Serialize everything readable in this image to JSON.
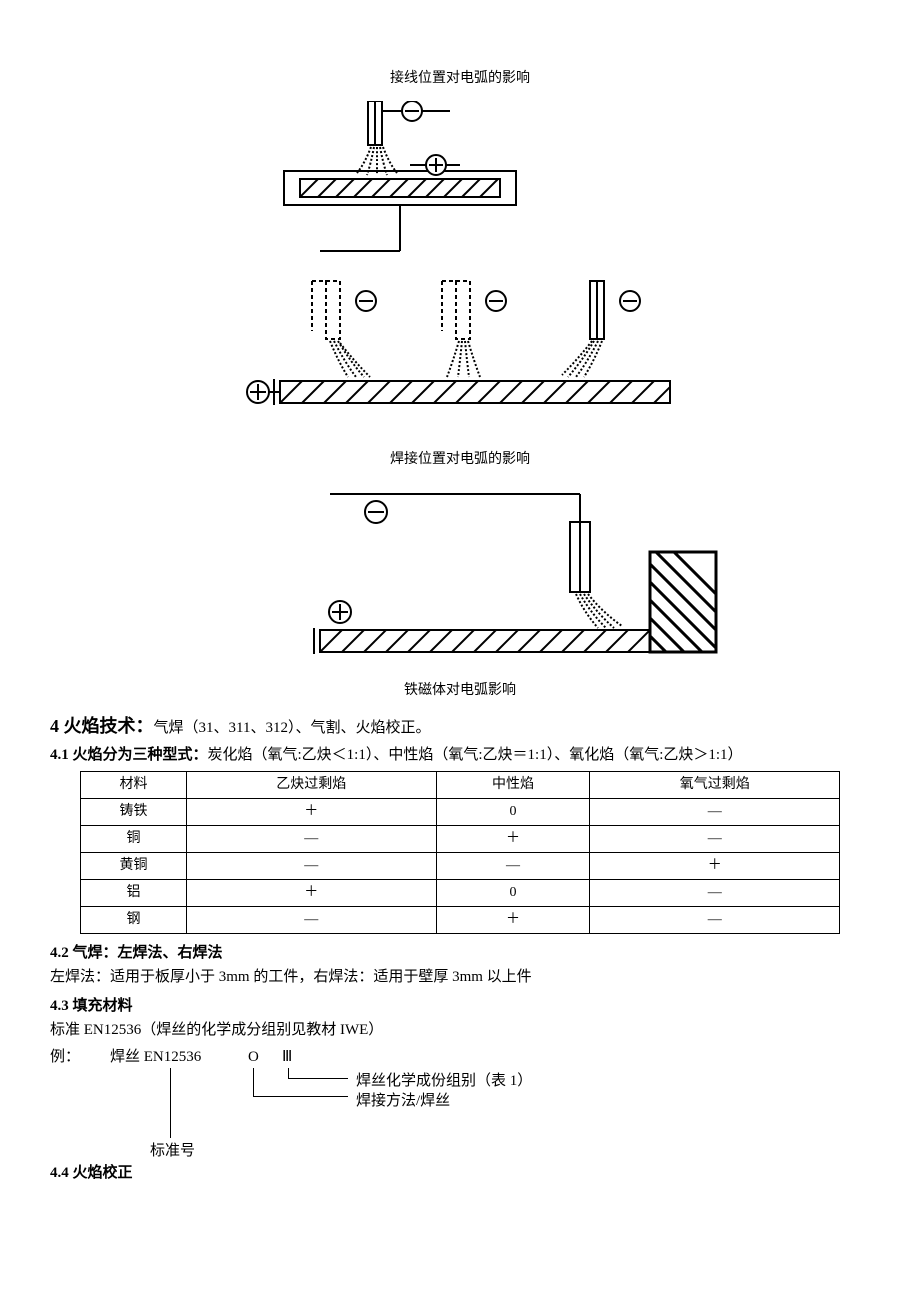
{
  "captions": {
    "c1": "接线位置对电弧的影响",
    "c2": "焊接位置对电弧的影响",
    "c3": "铁磁体对电弧影响"
  },
  "section4": {
    "title_prefix": "4 火焰技术：",
    "title_rest": "气焊（31、311、312）、气割、火焰校正。"
  },
  "s41": {
    "heading": "4.1  火焰分为三种型式：",
    "desc": "炭化焰（氧气:乙炔＜1:1）、中性焰（氧气:乙炔＝1:1）、氧化焰（氧气:乙炔＞1:1）",
    "table": {
      "headers": [
        "材料",
        "乙炔过剩焰",
        "中性焰",
        "氧气过剩焰"
      ],
      "rows": [
        [
          "铸铁",
          "＋",
          "0",
          "—"
        ],
        [
          "铜",
          "—",
          "＋",
          "—"
        ],
        [
          "黄铜",
          "—",
          "—",
          "＋"
        ],
        [
          "铝",
          "＋",
          "0",
          "—"
        ],
        [
          "钢",
          "—",
          "＋",
          "—"
        ]
      ]
    }
  },
  "s42": {
    "heading": "4.2  气焊：左焊法、右焊法",
    "body": "左焊法：适用于板厚小于 3mm 的工件，右焊法：适用于壁厚 3mm 以上件"
  },
  "s43": {
    "heading": "4.3  填充材料",
    "line1": "标准 EN12536（焊丝的化学成分组别见教材 IWE）",
    "example": {
      "prefix": "例：",
      "part1": "焊丝 EN12536",
      "part2": "O",
      "part3": "Ⅲ",
      "label1": "焊丝化学成份组别（表 1）",
      "label2": "焊接方法/焊丝",
      "label3": "标准号"
    }
  },
  "s44": {
    "heading": "4.4 火焰校正"
  },
  "diagram_colors": {
    "stroke": "#000000",
    "fill_bg": "#ffffff"
  }
}
